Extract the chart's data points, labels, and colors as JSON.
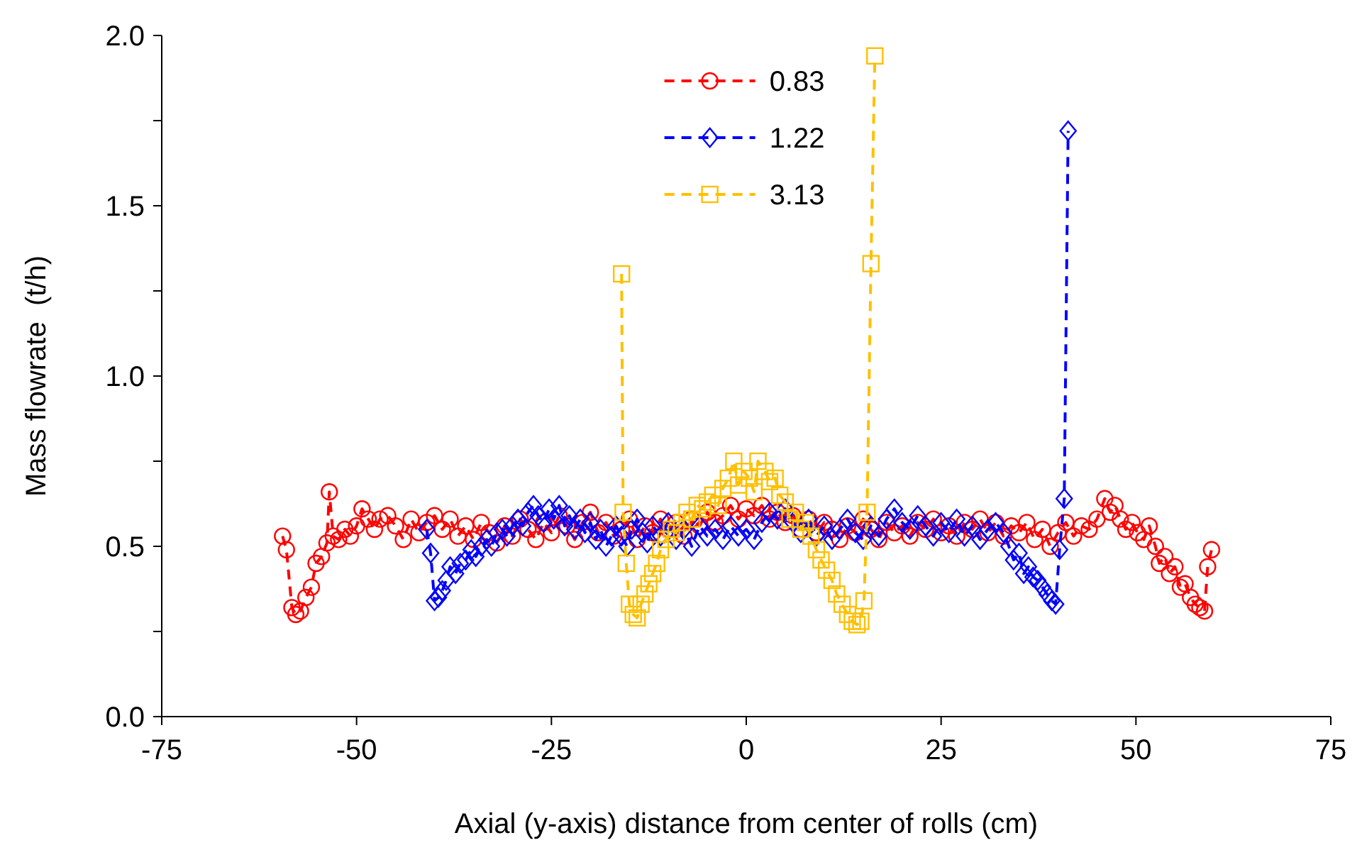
{
  "chart_data": {
    "type": "line",
    "xlabel": "Axial (y-axis) distance from center of rolls (cm)",
    "ylabel": "Mass flowrate  (t/h)",
    "xlim": [
      -75,
      75
    ],
    "xticks": [
      -75,
      -50,
      -25,
      0,
      25,
      50,
      75
    ],
    "ylim": [
      0,
      2
    ],
    "yticks": [
      {
        "value": 0,
        "label": "0.0"
      },
      {
        "value": 0.25,
        "label": null
      },
      {
        "value": 0.5,
        "label": "0.5"
      },
      {
        "value": 0.75,
        "label": null
      },
      {
        "value": 1,
        "label": "1.0"
      },
      {
        "value": 1.25,
        "label": null
      },
      {
        "value": 1.5,
        "label": "1.5"
      },
      {
        "value": 1.75,
        "label": null
      },
      {
        "value": 2,
        "label": "2.0"
      }
    ],
    "grid": false,
    "legend": "top",
    "line_style": "dashed",
    "series": [
      {
        "name": "0.83",
        "color": "#ff0000",
        "marker": "circle",
        "x": [
          -59.5,
          -59,
          -58.3,
          -57.8,
          -57.2,
          -56.5,
          -55.8,
          -55.2,
          -54.5,
          -53.8,
          -53.5,
          -53,
          -52.3,
          -51.5,
          -50.8,
          -50,
          -49.3,
          -48.5,
          -47.7,
          -47,
          -46,
          -45,
          -44,
          -43,
          -42,
          -41,
          -40,
          -39,
          -38,
          -37,
          -36,
          -35,
          -34,
          -33,
          -32,
          -31,
          -30,
          -29,
          -28,
          -27,
          -26,
          -25,
          -24,
          -23,
          -22,
          -21,
          -20,
          -19,
          -18,
          -17,
          -16,
          -15,
          -14,
          -13,
          -12,
          -11,
          -10,
          -9,
          -8,
          -7,
          -6,
          -5,
          -4,
          -3,
          -2,
          -1,
          0,
          1,
          2,
          3,
          4,
          5,
          6,
          7,
          8,
          9,
          10,
          11,
          12,
          13,
          14,
          15,
          16,
          17,
          18,
          19,
          20,
          21,
          22,
          23,
          24,
          25,
          26,
          27,
          28,
          29,
          30,
          31,
          32,
          33,
          34,
          35,
          36,
          37,
          38,
          39,
          40,
          41,
          42,
          43,
          44,
          45,
          46,
          46.7,
          47.3,
          48,
          48.7,
          49.5,
          50.2,
          51,
          51.7,
          52.5,
          53,
          53.7,
          54.3,
          55,
          55.7,
          56.3,
          57,
          57.6,
          58.2,
          58.8,
          59.2,
          59.7
        ],
        "values": [
          0.53,
          0.49,
          0.32,
          0.3,
          0.31,
          0.35,
          0.38,
          0.45,
          0.47,
          0.51,
          0.66,
          0.53,
          0.52,
          0.55,
          0.53,
          0.56,
          0.61,
          0.58,
          0.55,
          0.58,
          0.59,
          0.56,
          0.52,
          0.58,
          0.54,
          0.57,
          0.59,
          0.55,
          0.58,
          0.53,
          0.56,
          0.52,
          0.57,
          0.54,
          0.51,
          0.56,
          0.53,
          0.58,
          0.55,
          0.52,
          0.57,
          0.54,
          0.59,
          0.56,
          0.52,
          0.57,
          0.6,
          0.54,
          0.57,
          0.53,
          0.55,
          0.58,
          0.52,
          0.56,
          0.54,
          0.58,
          0.55,
          0.57,
          0.53,
          0.58,
          0.56,
          0.6,
          0.57,
          0.59,
          0.62,
          0.58,
          0.61,
          0.59,
          0.62,
          0.58,
          0.6,
          0.57,
          0.59,
          0.55,
          0.58,
          0.54,
          0.57,
          0.55,
          0.52,
          0.56,
          0.54,
          0.58,
          0.55,
          0.52,
          0.57,
          0.54,
          0.56,
          0.53,
          0.57,
          0.55,
          0.58,
          0.54,
          0.56,
          0.53,
          0.57,
          0.55,
          0.58,
          0.54,
          0.57,
          0.53,
          0.56,
          0.54,
          0.57,
          0.52,
          0.55,
          0.5,
          0.54,
          0.57,
          0.53,
          0.56,
          0.55,
          0.58,
          0.64,
          0.6,
          0.62,
          0.58,
          0.55,
          0.57,
          0.54,
          0.52,
          0.56,
          0.5,
          0.45,
          0.47,
          0.42,
          0.44,
          0.38,
          0.39,
          0.35,
          0.33,
          0.32,
          0.31,
          0.44,
          0.49
        ]
      },
      {
        "name": "1.22",
        "color": "#0000ff",
        "marker": "diamond",
        "x": [
          -41,
          -40.5,
          -40,
          -39.5,
          -39,
          -38.5,
          -38,
          -37.3,
          -36.7,
          -36,
          -35.3,
          -34.7,
          -34,
          -33.3,
          -32.7,
          -32,
          -31.3,
          -30.7,
          -30,
          -29.3,
          -28.7,
          -28,
          -27.3,
          -26.7,
          -26,
          -25.3,
          -24.7,
          -24,
          -23.3,
          -22.7,
          -22,
          -21.3,
          -20.7,
          -20,
          -19.3,
          -18.7,
          -18,
          -17.3,
          -16.7,
          -16,
          -15.3,
          -14.7,
          -14,
          -13.3,
          -12.7,
          -12,
          -11,
          -10,
          -9,
          -8,
          -7,
          -6,
          -5,
          -4,
          -3,
          -2,
          -1,
          0,
          1,
          2,
          3,
          4,
          5,
          6,
          7,
          8,
          9,
          10,
          11,
          12,
          13,
          14,
          15,
          16,
          17,
          18,
          19,
          20,
          21,
          22,
          23,
          24,
          25,
          26,
          27,
          28,
          29,
          30,
          31,
          32,
          33,
          33.7,
          34.3,
          35,
          35.6,
          36.2,
          36.8,
          37.4,
          38,
          38.6,
          39.2,
          39.7,
          40.2,
          40.8,
          41.3
        ],
        "values": [
          0.55,
          0.48,
          0.34,
          0.35,
          0.37,
          0.4,
          0.44,
          0.42,
          0.45,
          0.46,
          0.49,
          0.47,
          0.5,
          0.52,
          0.5,
          0.54,
          0.55,
          0.53,
          0.56,
          0.58,
          0.56,
          0.6,
          0.62,
          0.59,
          0.57,
          0.61,
          0.58,
          0.62,
          0.56,
          0.59,
          0.55,
          0.58,
          0.54,
          0.57,
          0.52,
          0.55,
          0.5,
          0.53,
          0.56,
          0.53,
          0.5,
          0.55,
          0.58,
          0.54,
          0.51,
          0.56,
          0.53,
          0.57,
          0.52,
          0.55,
          0.5,
          0.56,
          0.53,
          0.55,
          0.52,
          0.56,
          0.53,
          0.55,
          0.52,
          0.57,
          0.6,
          0.58,
          0.61,
          0.57,
          0.54,
          0.58,
          0.53,
          0.56,
          0.52,
          0.55,
          0.58,
          0.54,
          0.52,
          0.56,
          0.53,
          0.58,
          0.61,
          0.57,
          0.55,
          0.59,
          0.56,
          0.53,
          0.57,
          0.54,
          0.58,
          0.53,
          0.56,
          0.52,
          0.55,
          0.57,
          0.54,
          0.5,
          0.46,
          0.48,
          0.42,
          0.44,
          0.41,
          0.4,
          0.38,
          0.36,
          0.34,
          0.33,
          0.49,
          0.64,
          1.72
        ]
      },
      {
        "name": "3.13",
        "color": "#ffc000",
        "marker": "square",
        "x": [
          -16,
          -15.8,
          -15.4,
          -15,
          -14.5,
          -14,
          -13.5,
          -13,
          -12.5,
          -12,
          -11.5,
          -11,
          -10.3,
          -9.6,
          -9,
          -8.3,
          -7.6,
          -7,
          -6.3,
          -5.6,
          -5,
          -4.3,
          -3.6,
          -3,
          -2.3,
          -1.6,
          -1,
          -0.3,
          0.4,
          1,
          1.5,
          2.4,
          3,
          3.7,
          4.3,
          5,
          5.6,
          6.3,
          7,
          7.6,
          8.3,
          9,
          9.6,
          10.3,
          11,
          11.6,
          12.3,
          13,
          13.6,
          14.2,
          14.7,
          15.1,
          15.5,
          16,
          16.5
        ],
        "values": [
          1.3,
          0.6,
          0.45,
          0.33,
          0.3,
          0.29,
          0.33,
          0.36,
          0.39,
          0.42,
          0.45,
          0.49,
          0.52,
          0.55,
          0.54,
          0.57,
          0.6,
          0.58,
          0.62,
          0.61,
          0.63,
          0.65,
          0.62,
          0.67,
          0.7,
          0.75,
          0.68,
          0.72,
          0.7,
          0.66,
          0.75,
          0.72,
          0.69,
          0.7,
          0.65,
          0.63,
          0.58,
          0.6,
          0.55,
          0.57,
          0.53,
          0.49,
          0.46,
          0.43,
          0.4,
          0.36,
          0.33,
          0.3,
          0.28,
          0.27,
          0.28,
          0.34,
          0.6,
          1.33,
          1.94
        ]
      }
    ]
  }
}
